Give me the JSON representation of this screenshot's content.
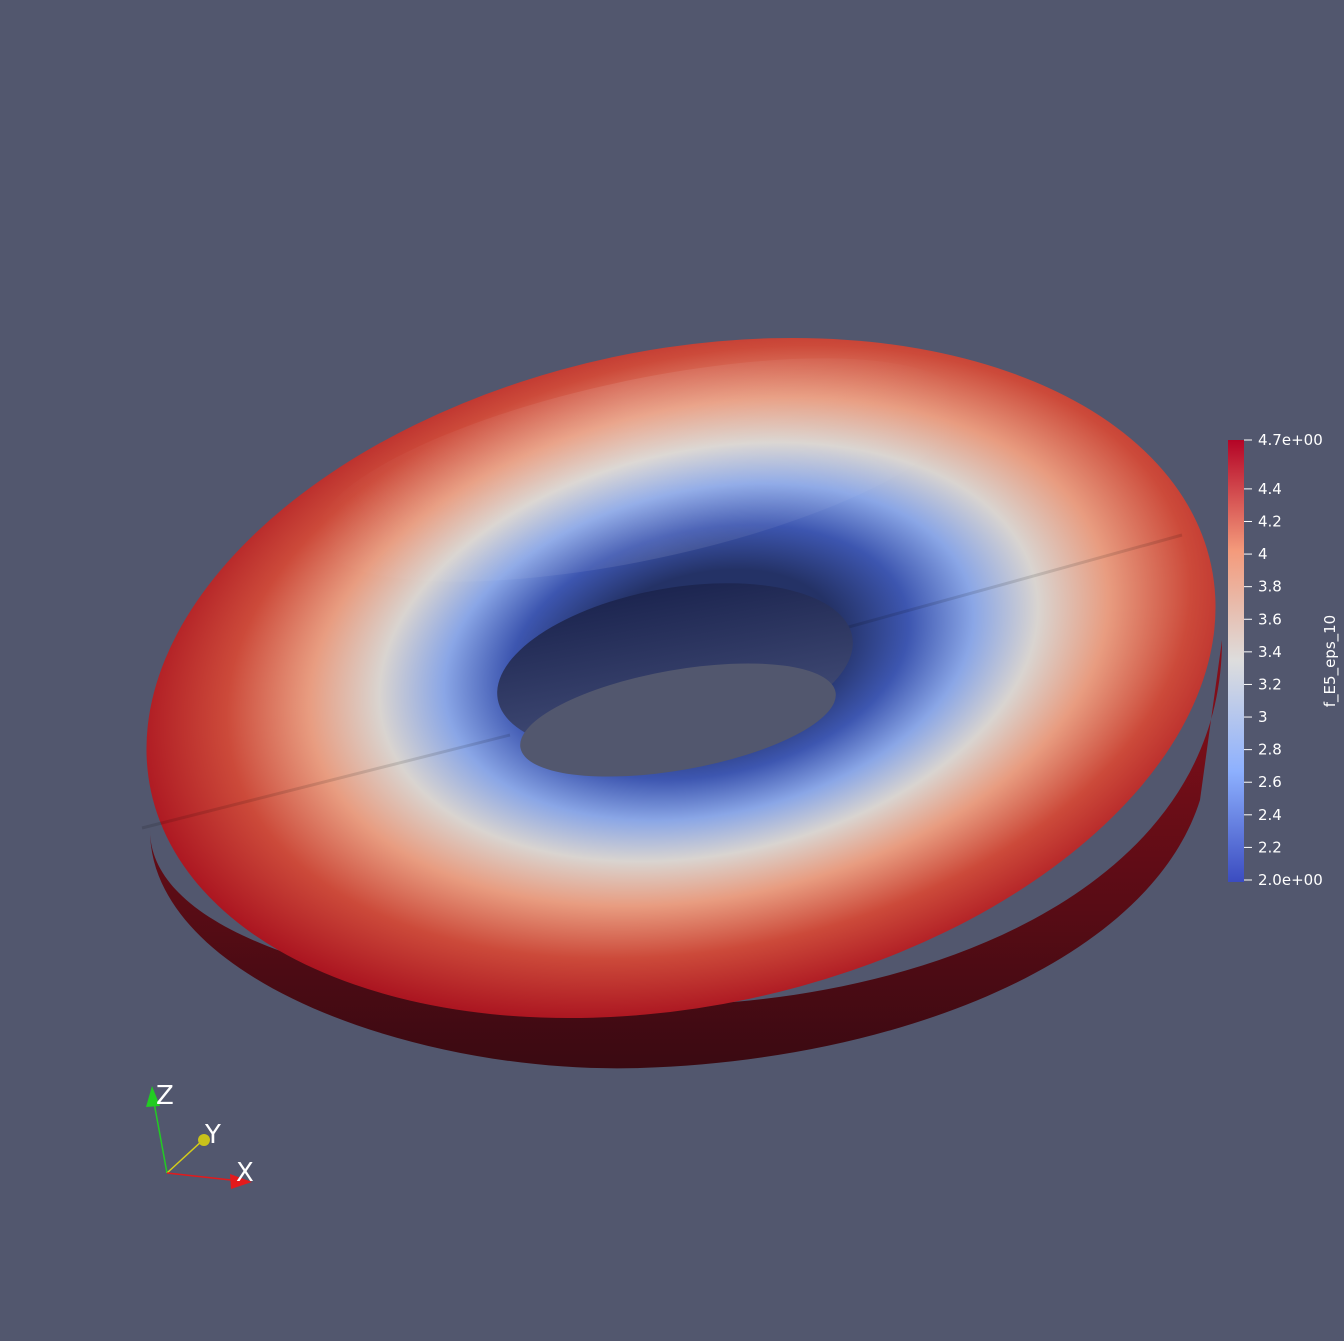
{
  "scene": {
    "background": "#52576e",
    "object": "torus",
    "colormap": "Cool to Warm"
  },
  "scalar_bar": {
    "title": "f_E5_eps_10",
    "min": 2.0,
    "max": 4.7,
    "ticks": [
      {
        "value": 4.7,
        "label": "4.7e+00"
      },
      {
        "value": 4.4,
        "label": "4.4"
      },
      {
        "value": 4.2,
        "label": "4.2"
      },
      {
        "value": 4.0,
        "label": "4"
      },
      {
        "value": 3.8,
        "label": "3.8"
      },
      {
        "value": 3.6,
        "label": "3.6"
      },
      {
        "value": 3.4,
        "label": "3.4"
      },
      {
        "value": 3.2,
        "label": "3.2"
      },
      {
        "value": 3.0,
        "label": "3"
      },
      {
        "value": 2.8,
        "label": "2.8"
      },
      {
        "value": 2.6,
        "label": "2.6"
      },
      {
        "value": 2.4,
        "label": "2.4"
      },
      {
        "value": 2.2,
        "label": "2.2"
      },
      {
        "value": 2.0,
        "label": "2.0e+00"
      }
    ],
    "colors": [
      "#3b4cc0",
      "#8db0fe",
      "#dddddd",
      "#f49a7b",
      "#b40426"
    ]
  },
  "orientation_axes": {
    "x": {
      "label": "X",
      "color": "#e31a1c"
    },
    "y": {
      "label": "Y",
      "color": "#d4cc1a"
    },
    "z": {
      "label": "Z",
      "color": "#22cc22"
    }
  }
}
